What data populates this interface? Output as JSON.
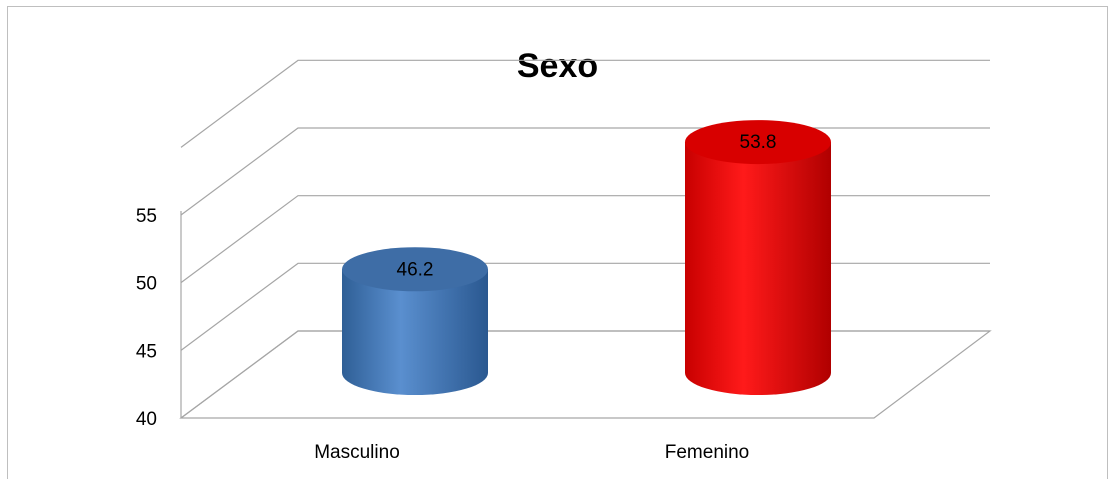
{
  "chart_data": {
    "type": "bar",
    "title": "Sexo",
    "categories": [
      "Masculino",
      "Femenino"
    ],
    "values": [
      46.2,
      53.8
    ],
    "bar_colors": [
      "#4f81bd",
      "#ff0000"
    ],
    "ylim": [
      40,
      55
    ],
    "yticks": [
      "40",
      "45",
      "50",
      "55"
    ],
    "grid": true,
    "legend": "none",
    "style": "3d-cylinder"
  }
}
